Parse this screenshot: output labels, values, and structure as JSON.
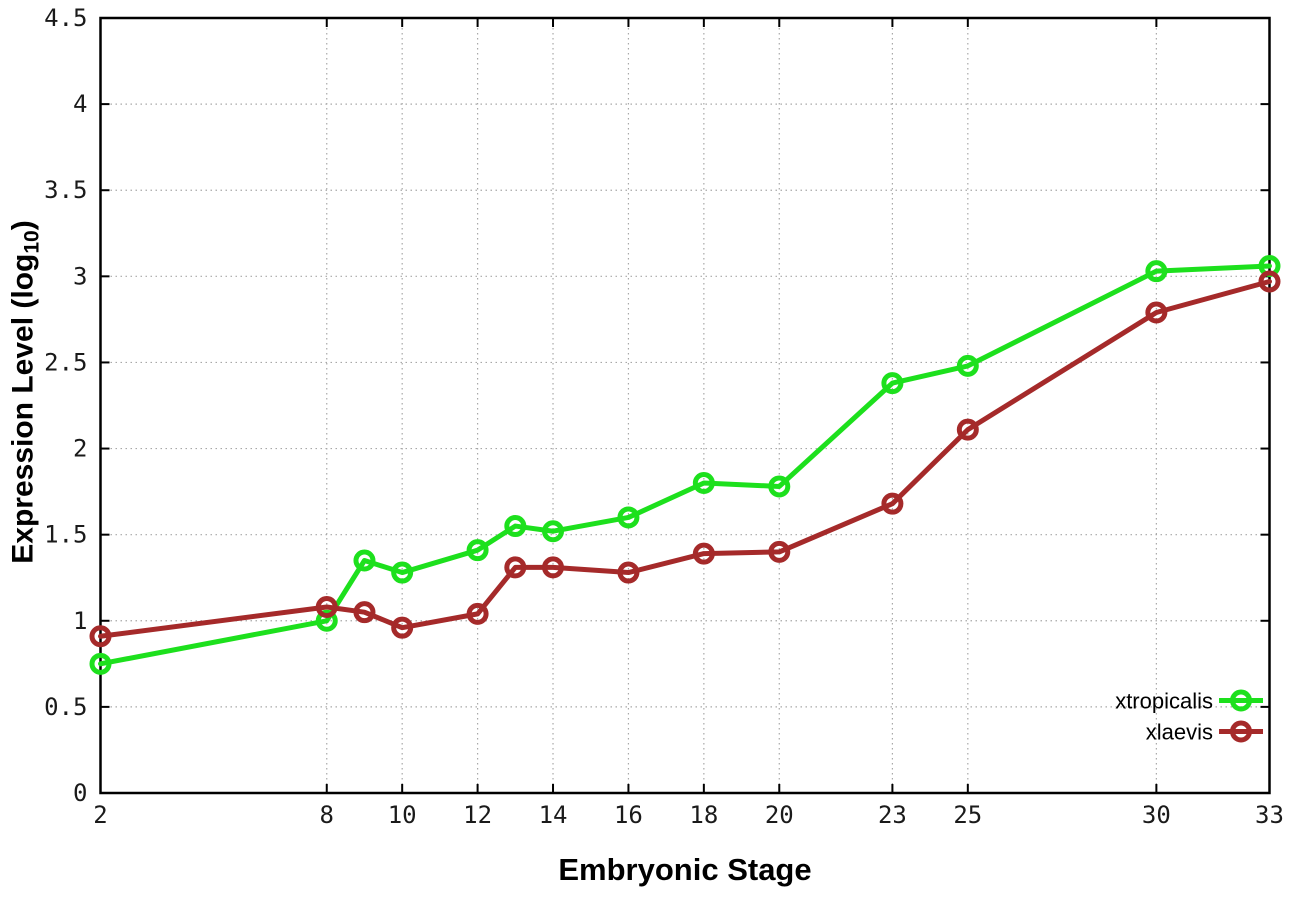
{
  "chart_data": {
    "type": "line",
    "title": "",
    "xlabel": "Embryonic Stage",
    "ylabel_prefix": "Expression Level (log",
    "ylabel_sub": "10",
    "ylabel_suffix": ")",
    "grid": true,
    "legend_position": "bottom-right-inside",
    "x_axis": {
      "min": 2,
      "max": 33,
      "tick_values": [
        2,
        8,
        10,
        12,
        14,
        16,
        18,
        20,
        23,
        25,
        30,
        33
      ],
      "tick_labels": [
        "2",
        "8",
        "10",
        "12",
        "14",
        "16",
        "18",
        "20",
        "23",
        "25",
        "30",
        "33"
      ]
    },
    "y_axis": {
      "min": 0,
      "max": 4.5,
      "tick_values": [
        0,
        0.5,
        1,
        1.5,
        2,
        2.5,
        3,
        3.5,
        4,
        4.5
      ],
      "tick_labels": [
        "0",
        "0.5",
        "1",
        "1.5",
        "2",
        "2.5",
        "3",
        "3.5",
        "4",
        "4.5"
      ]
    },
    "x": [
      2,
      8,
      9,
      10,
      12,
      13,
      14,
      16,
      18,
      20,
      23,
      25,
      30,
      33
    ],
    "series": [
      {
        "name": "xtropicalis",
        "color": "#1de01d",
        "marker": "open-circle",
        "values": [
          0.75,
          1.0,
          1.35,
          1.28,
          1.41,
          1.55,
          1.52,
          1.6,
          1.8,
          1.78,
          2.38,
          2.48,
          3.03,
          3.06
        ]
      },
      {
        "name": "xlaevis",
        "color": "#a52a2a",
        "marker": "open-circle",
        "values": [
          0.91,
          1.08,
          1.05,
          0.96,
          1.04,
          1.31,
          1.31,
          1.28,
          1.39,
          1.4,
          1.68,
          2.11,
          2.79,
          2.97
        ]
      }
    ],
    "style": {
      "grid_color": "#a8a8a8",
      "border_color": "#000000",
      "tick_label_color": "#1a1a1a",
      "line_width": 5,
      "marker_radius": 8.5,
      "marker_stroke": 5
    }
  }
}
